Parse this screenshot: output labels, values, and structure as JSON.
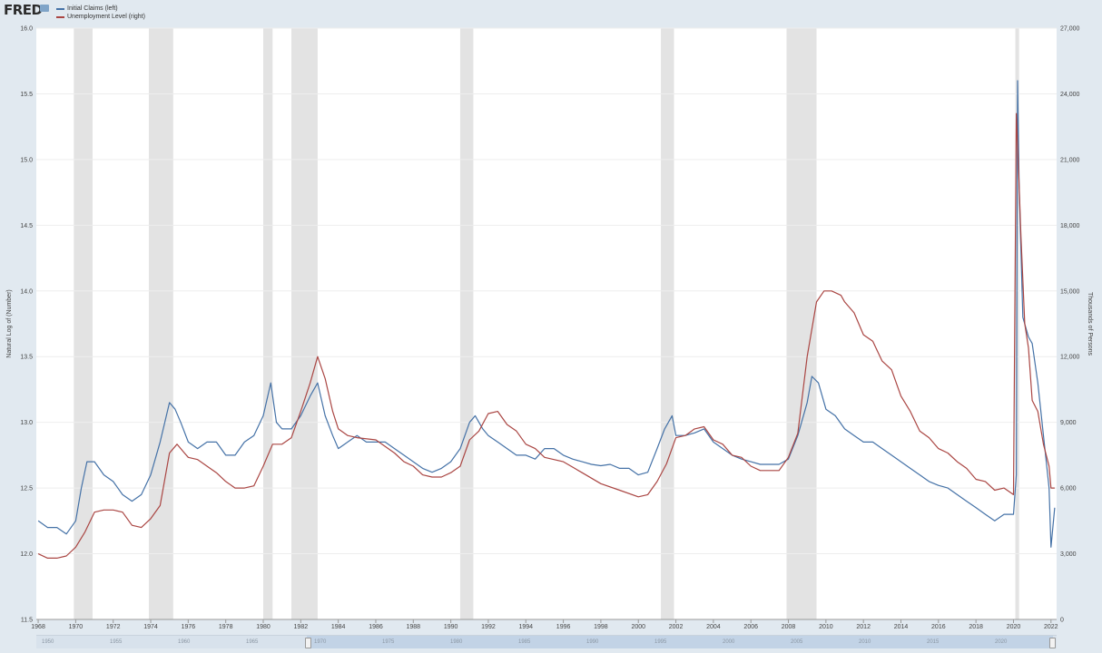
{
  "header": {
    "logo_text": "FRED"
  },
  "legend": [
    {
      "label": "Initial Claims (left)",
      "color": "#4572a7"
    },
    {
      "label": "Unemployment Level (right)",
      "color": "#aa4643"
    }
  ],
  "axes": {
    "left_label": "Natural Log of (Number)",
    "right_label": "Thousands of Persons"
  },
  "navigator": {
    "ticks": [
      "1950",
      "1955",
      "1960",
      "1965",
      "1970",
      "1975",
      "1980",
      "1985",
      "1990",
      "1995",
      "2000",
      "2005",
      "2010",
      "2015",
      "2020"
    ]
  },
  "chart_data": {
    "type": "line",
    "xlim": [
      1967.9,
      2022.3
    ],
    "x_ticks": [
      1968,
      1970,
      1972,
      1974,
      1976,
      1978,
      1980,
      1982,
      1984,
      1986,
      1988,
      1990,
      1992,
      1994,
      1996,
      1998,
      2000,
      2002,
      2004,
      2006,
      2008,
      2010,
      2012,
      2014,
      2016,
      2018,
      2020,
      2022
    ],
    "y_left": {
      "label": "Natural Log of (Number)",
      "lim": [
        11.5,
        16.0
      ],
      "ticks": [
        "11.5",
        "12.0",
        "12.5",
        "13.0",
        "13.5",
        "14.0",
        "14.5",
        "15.0",
        "15.5",
        "16.0"
      ]
    },
    "y_right": {
      "label": "Thousands of Persons",
      "lim": [
        0,
        27000
      ],
      "ticks": [
        "0",
        "3,000",
        "6,000",
        "9,000",
        "12,000",
        "15,000",
        "18,000",
        "21,000",
        "24,000",
        "27,000"
      ]
    },
    "recessions": [
      [
        1969.9,
        1970.9
      ],
      [
        1973.9,
        1975.2
      ],
      [
        1980.0,
        1980.5
      ],
      [
        1981.5,
        1982.9
      ],
      [
        1990.5,
        1991.2
      ],
      [
        2001.2,
        2001.9
      ],
      [
        2007.9,
        2009.5
      ],
      [
        2020.1,
        2020.3
      ]
    ],
    "series": [
      {
        "name": "Initial Claims (left)",
        "axis": "left",
        "color": "#4572a7",
        "x": [
          1968.0,
          1968.5,
          1969.0,
          1969.5,
          1970.0,
          1970.3,
          1970.6,
          1971.0,
          1971.5,
          1972.0,
          1972.5,
          1973.0,
          1973.5,
          1974.0,
          1974.5,
          1975.0,
          1975.3,
          1975.6,
          1976.0,
          1976.5,
          1977.0,
          1977.5,
          1978.0,
          1978.5,
          1979.0,
          1979.5,
          1980.0,
          1980.4,
          1980.7,
          1981.0,
          1981.5,
          1982.0,
          1982.5,
          1982.9,
          1983.3,
          1983.7,
          1984.0,
          1984.5,
          1985.0,
          1985.5,
          1986.0,
          1986.5,
          1987.0,
          1987.5,
          1988.0,
          1988.5,
          1989.0,
          1989.5,
          1990.0,
          1990.5,
          1991.0,
          1991.3,
          1991.7,
          1992.0,
          1992.5,
          1993.0,
          1993.5,
          1994.0,
          1994.5,
          1995.0,
          1995.5,
          1996.0,
          1996.5,
          1997.0,
          1997.5,
          1998.0,
          1998.5,
          1999.0,
          1999.5,
          2000.0,
          2000.5,
          2001.0,
          2001.4,
          2001.8,
          2002.0,
          2002.5,
          2003.0,
          2003.5,
          2004.0,
          2004.5,
          2005.0,
          2005.5,
          2006.0,
          2006.5,
          2007.0,
          2007.5,
          2008.0,
          2008.5,
          2009.0,
          2009.25,
          2009.6,
          2010.0,
          2010.5,
          2011.0,
          2011.5,
          2012.0,
          2012.5,
          2013.0,
          2013.5,
          2014.0,
          2014.5,
          2015.0,
          2015.5,
          2016.0,
          2016.5,
          2017.0,
          2017.5,
          2018.0,
          2018.5,
          2019.0,
          2019.5,
          2020.0,
          2020.15,
          2020.22,
          2020.3,
          2020.5,
          2020.8,
          2021.0,
          2021.3,
          2021.6,
          2021.9,
          2022.0,
          2022.2
        ],
        "values": [
          12.25,
          12.2,
          12.2,
          12.15,
          12.25,
          12.5,
          12.7,
          12.7,
          12.6,
          12.55,
          12.45,
          12.4,
          12.45,
          12.6,
          12.85,
          13.15,
          13.1,
          13.0,
          12.85,
          12.8,
          12.85,
          12.85,
          12.75,
          12.75,
          12.85,
          12.9,
          13.05,
          13.3,
          13.0,
          12.95,
          12.95,
          13.05,
          13.2,
          13.3,
          13.05,
          12.9,
          12.8,
          12.85,
          12.9,
          12.85,
          12.85,
          12.85,
          12.8,
          12.75,
          12.7,
          12.65,
          12.62,
          12.65,
          12.7,
          12.8,
          13.0,
          13.05,
          12.95,
          12.9,
          12.85,
          12.8,
          12.75,
          12.75,
          12.72,
          12.8,
          12.8,
          12.75,
          12.72,
          12.7,
          12.68,
          12.67,
          12.68,
          12.65,
          12.65,
          12.6,
          12.62,
          12.8,
          12.95,
          13.05,
          12.9,
          12.9,
          12.92,
          12.95,
          12.85,
          12.8,
          12.75,
          12.72,
          12.7,
          12.68,
          12.68,
          12.68,
          12.72,
          12.9,
          13.15,
          13.35,
          13.3,
          13.1,
          13.05,
          12.95,
          12.9,
          12.85,
          12.85,
          12.8,
          12.75,
          12.7,
          12.65,
          12.6,
          12.55,
          12.52,
          12.5,
          12.45,
          12.4,
          12.35,
          12.3,
          12.25,
          12.3,
          12.3,
          12.6,
          15.6,
          14.8,
          13.8,
          13.65,
          13.6,
          13.3,
          12.9,
          12.5,
          12.05,
          12.35
        ]
      },
      {
        "name": "Unemployment Level (right)",
        "axis": "right",
        "color": "#aa4643",
        "x": [
          1968.0,
          1968.5,
          1969.0,
          1969.5,
          1970.0,
          1970.5,
          1971.0,
          1971.5,
          1972.0,
          1972.5,
          1973.0,
          1973.5,
          1974.0,
          1974.5,
          1975.0,
          1975.4,
          1975.8,
          1976.0,
          1976.5,
          1977.0,
          1977.5,
          1978.0,
          1978.5,
          1979.0,
          1979.5,
          1980.0,
          1980.5,
          1981.0,
          1981.5,
          1982.0,
          1982.5,
          1982.9,
          1983.3,
          1983.7,
          1984.0,
          1984.5,
          1985.0,
          1986.0,
          1987.0,
          1987.5,
          1988.0,
          1988.5,
          1989.0,
          1989.5,
          1990.0,
          1990.5,
          1991.0,
          1991.5,
          1992.0,
          1992.5,
          1993.0,
          1993.5,
          1994.0,
          1994.5,
          1995.0,
          1995.5,
          1996.0,
          1997.0,
          1998.0,
          1999.0,
          2000.0,
          2000.5,
          2001.0,
          2001.5,
          2002.0,
          2002.5,
          2003.0,
          2003.5,
          2004.0,
          2004.5,
          2005.0,
          2005.5,
          2006.0,
          2006.5,
          2007.0,
          2007.5,
          2008.0,
          2008.5,
          2009.0,
          2009.5,
          2009.9,
          2010.3,
          2010.8,
          2011.0,
          2011.5,
          2012.0,
          2012.5,
          2013.0,
          2013.5,
          2014.0,
          2014.5,
          2015.0,
          2015.5,
          2016.0,
          2016.5,
          2017.0,
          2017.5,
          2018.0,
          2018.5,
          2019.0,
          2019.5,
          2020.0,
          2020.15,
          2020.28,
          2020.4,
          2020.6,
          2020.8,
          2021.0,
          2021.3,
          2021.6,
          2021.9,
          2022.0,
          2022.2
        ],
        "values": [
          3000,
          2800,
          2800,
          2900,
          3300,
          4000,
          4900,
          5000,
          5000,
          4900,
          4300,
          4200,
          4600,
          5200,
          7600,
          8000,
          7600,
          7400,
          7300,
          7000,
          6700,
          6300,
          6000,
          6000,
          6100,
          7000,
          8000,
          8000,
          8300,
          9500,
          10800,
          12000,
          11000,
          9500,
          8700,
          8400,
          8300,
          8200,
          7600,
          7200,
          7000,
          6600,
          6500,
          6500,
          6700,
          7000,
          8200,
          8600,
          9400,
          9500,
          8900,
          8600,
          8000,
          7800,
          7400,
          7300,
          7200,
          6700,
          6200,
          5900,
          5600,
          5700,
          6300,
          7100,
          8300,
          8400,
          8700,
          8800,
          8200,
          8000,
          7500,
          7400,
          7000,
          6800,
          6800,
          6800,
          7400,
          8500,
          12000,
          14500,
          15000,
          15000,
          14800,
          14500,
          14000,
          13000,
          12700,
          11800,
          11400,
          10200,
          9500,
          8600,
          8300,
          7800,
          7600,
          7200,
          6900,
          6400,
          6300,
          5900,
          6000,
          5700,
          23100,
          20300,
          17500,
          13500,
          12400,
          10000,
          9500,
          8000,
          7000,
          6000,
          6000
        ]
      }
    ]
  }
}
